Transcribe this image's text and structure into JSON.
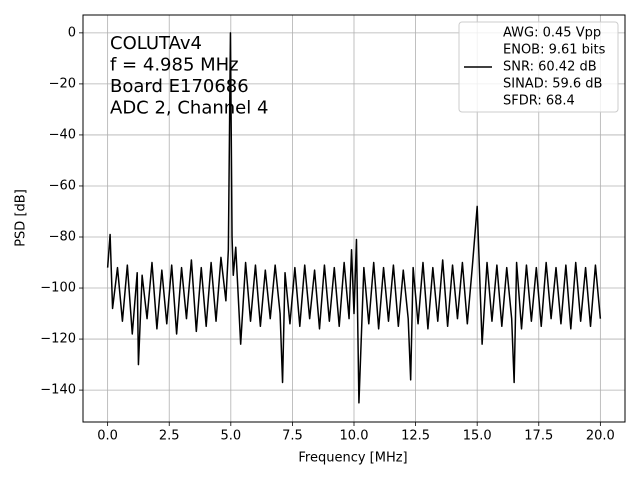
{
  "chart_data": {
    "type": "line",
    "xlabel": "Frequency [MHz]",
    "ylabel": "PSD [dB]",
    "annotations": [
      "COLUTAv4",
      "f = 4.985 MHz",
      "Board E170686",
      "ADC 2, Channel 4"
    ],
    "legend_notes_before": [
      "AWG: 0.45 Vpp",
      "ENOB: 9.61 bits"
    ],
    "legend_notes_after": [
      "SINAD: 59.6 dB",
      "SFDR: 68.4"
    ],
    "legend": "upper right",
    "grid": true,
    "x": [
      0,
      0.1,
      0.2,
      0.4,
      0.6,
      0.8,
      1.0,
      1.2,
      1.25,
      1.4,
      1.6,
      1.8,
      2.0,
      2.2,
      2.4,
      2.6,
      2.8,
      3.0,
      3.2,
      3.4,
      3.6,
      3.8,
      4.0,
      4.2,
      4.4,
      4.6,
      4.8,
      4.9,
      4.985,
      5.05,
      5.1,
      5.2,
      5.4,
      5.6,
      5.8,
      6.0,
      6.2,
      6.4,
      6.6,
      6.8,
      7.0,
      7.1,
      7.2,
      7.4,
      7.6,
      7.8,
      8.0,
      8.2,
      8.4,
      8.6,
      8.8,
      9.0,
      9.2,
      9.4,
      9.6,
      9.8,
      9.9,
      10.0,
      10.1,
      10.2,
      10.4,
      10.6,
      10.8,
      11.0,
      11.2,
      11.4,
      11.6,
      11.8,
      12.0,
      12.2,
      12.3,
      12.4,
      12.6,
      12.8,
      13.0,
      13.2,
      13.4,
      13.6,
      13.8,
      14.0,
      14.2,
      14.4,
      14.6,
      14.8,
      15.0,
      15.2,
      15.4,
      15.6,
      15.8,
      16.0,
      16.2,
      16.4,
      16.5,
      16.6,
      16.8,
      17.0,
      17.2,
      17.4,
      17.6,
      17.8,
      18.0,
      18.2,
      18.4,
      18.6,
      18.8,
      19.0,
      19.2,
      19.4,
      19.6,
      19.8,
      20.0
    ],
    "series": [
      {
        "name": "SNR: 60.42 dB",
        "color": "#000000",
        "values": [
          -92,
          -79,
          -108,
          -92,
          -113,
          -91,
          -118,
          -94,
          -130,
          -95,
          -112,
          -90,
          -116,
          -93,
          -114,
          -91,
          -118,
          -92,
          -112,
          -89,
          -117,
          -92,
          -115,
          -90,
          -113,
          -88,
          -105,
          -85,
          0,
          -80,
          -95,
          -84,
          -122,
          -90,
          -113,
          -91,
          -115,
          -93,
          -112,
          -91,
          -110,
          -137,
          -94,
          -114,
          -92,
          -115,
          -91,
          -112,
          -93,
          -116,
          -91,
          -113,
          -92,
          -115,
          -90,
          -112,
          -85,
          -110,
          -81,
          -145,
          -92,
          -114,
          -90,
          -116,
          -92,
          -113,
          -91,
          -115,
          -93,
          -112,
          -136,
          -92,
          -114,
          -90,
          -116,
          -92,
          -113,
          -89,
          -115,
          -91,
          -112,
          -90,
          -114,
          -92,
          -68,
          -122,
          -90,
          -113,
          -91,
          -115,
          -92,
          -112,
          -137,
          -90,
          -116,
          -91,
          -113,
          -92,
          -115,
          -90,
          -112,
          -92,
          -114,
          -91,
          -116,
          -90,
          -113,
          -92,
          -115,
          -91,
          -112
        ]
      }
    ],
    "xlim": [
      -1.0,
      21.0
    ],
    "ylim": [
      -152.5,
      7.0
    ],
    "xticks": [
      {
        "value": 0,
        "label": "0.0"
      },
      2.5,
      {
        "value": 5,
        "label": "5.0"
      },
      7.5,
      {
        "value": 10,
        "label": "10.0"
      },
      12.5,
      {
        "value": 15,
        "label": "15.0"
      },
      17.5,
      {
        "value": 20,
        "label": "20.0"
      }
    ],
    "yticks": [
      {
        "value": -140,
        "label": "−140"
      },
      {
        "value": -120,
        "label": "−120"
      },
      {
        "value": -100,
        "label": "−100"
      },
      {
        "value": -80,
        "label": "−80"
      },
      {
        "value": -60,
        "label": "−60"
      },
      {
        "value": -40,
        "label": "−40"
      },
      {
        "value": -20,
        "label": "−20"
      },
      0
    ]
  }
}
